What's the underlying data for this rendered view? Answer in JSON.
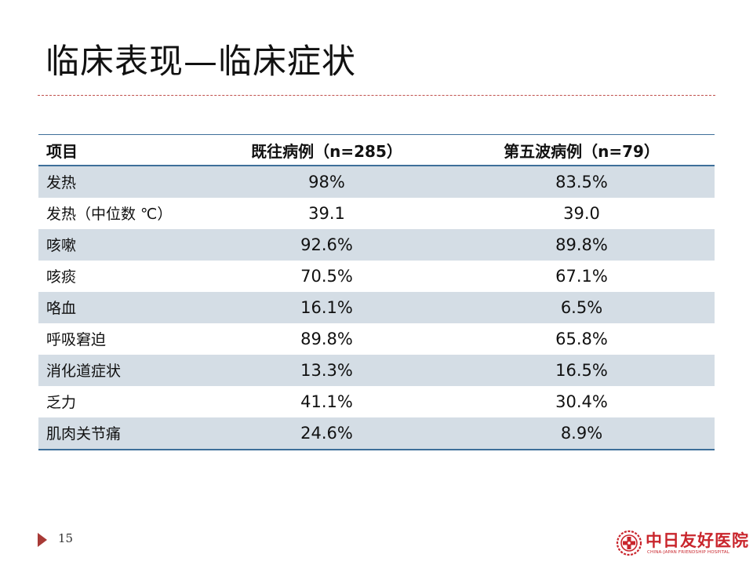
{
  "title": "临床表现—临床症状",
  "table": {
    "headers": [
      "项目",
      "既往病例（n=285）",
      "第五波病例（n=79）"
    ],
    "rows": [
      {
        "item": "发热",
        "past": "98%",
        "wave5": "83.5%"
      },
      {
        "item": "发热（中位数 ℃）",
        "past": "39.1",
        "wave5": "39.0"
      },
      {
        "item": "咳嗽",
        "past": "92.6%",
        "wave5": "89.8%"
      },
      {
        "item": "咳痰",
        "past": "70.5%",
        "wave5": "67.1%"
      },
      {
        "item": "咯血",
        "past": "16.1%",
        "wave5": "6.5%"
      },
      {
        "item": "呼吸窘迫",
        "past": "89.8%",
        "wave5": "65.8%"
      },
      {
        "item": "消化道症状",
        "past": "13.3%",
        "wave5": "16.5%"
      },
      {
        "item": "乏力",
        "past": "41.1%",
        "wave5": "30.4%"
      },
      {
        "item": "肌肉关节痛",
        "past": "24.6%",
        "wave5": "8.9%"
      }
    ]
  },
  "footer": {
    "page_number": "15",
    "logo_text": "中日友好医院",
    "logo_subtext": "CHINA-JAPAN FRIENDSHIP HOSPITAL"
  },
  "colors": {
    "accent": "#c0504d",
    "table_rule": "#3e6f9a",
    "row_shade": "#d4dde5",
    "logo_red": "#c9252c"
  }
}
